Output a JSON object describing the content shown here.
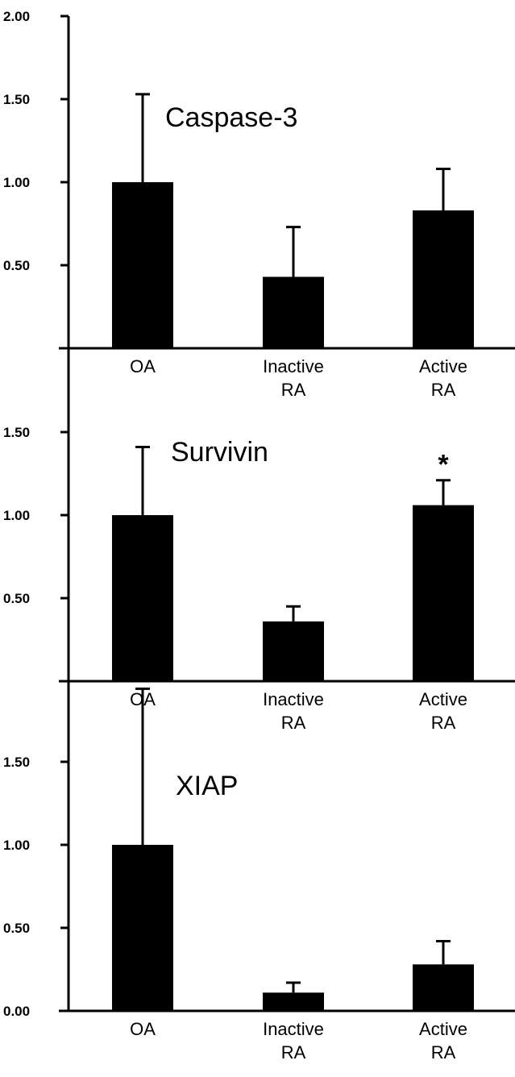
{
  "chart_data": [
    {
      "type": "bar",
      "title": "Caspase-3",
      "categories": [
        "OA",
        "Inactive\nRA",
        "Active\nRA"
      ],
      "values": [
        1.0,
        0.43,
        0.83
      ],
      "errors": [
        0.53,
        0.3,
        0.25
      ],
      "ylim": [
        0,
        2.0
      ],
      "yticks": [
        2.0,
        1.5,
        1.0,
        0.5
      ],
      "ytick_labels": [
        "2.00",
        "1.50",
        "1.00",
        "0.50"
      ],
      "annotations": []
    },
    {
      "type": "bar",
      "title": "Survivin",
      "categories": [
        "OA",
        "Inactive\nRA",
        "Active\nRA"
      ],
      "values": [
        1.0,
        0.36,
        1.06
      ],
      "errors": [
        0.41,
        0.09,
        0.15
      ],
      "ylim": [
        0,
        2.0
      ],
      "yticks": [
        1.5,
        1.0,
        0.5
      ],
      "ytick_labels": [
        "1.50",
        "1.00",
        "0.50"
      ],
      "annotations": [
        {
          "category_index": 2,
          "text": "*"
        }
      ]
    },
    {
      "type": "bar",
      "title": "XIAP",
      "categories": [
        "OA",
        "Inactive\nRA",
        "Active\nRA"
      ],
      "values": [
        1.0,
        0.11,
        0.28
      ],
      "errors": [
        0.94,
        0.06,
        0.14
      ],
      "ylim": [
        0,
        2.0
      ],
      "yticks": [
        1.5,
        1.0,
        0.5,
        0.0
      ],
      "ytick_labels": [
        "1.50",
        "1.00",
        "0.50",
        "0.00"
      ],
      "annotations": []
    }
  ]
}
